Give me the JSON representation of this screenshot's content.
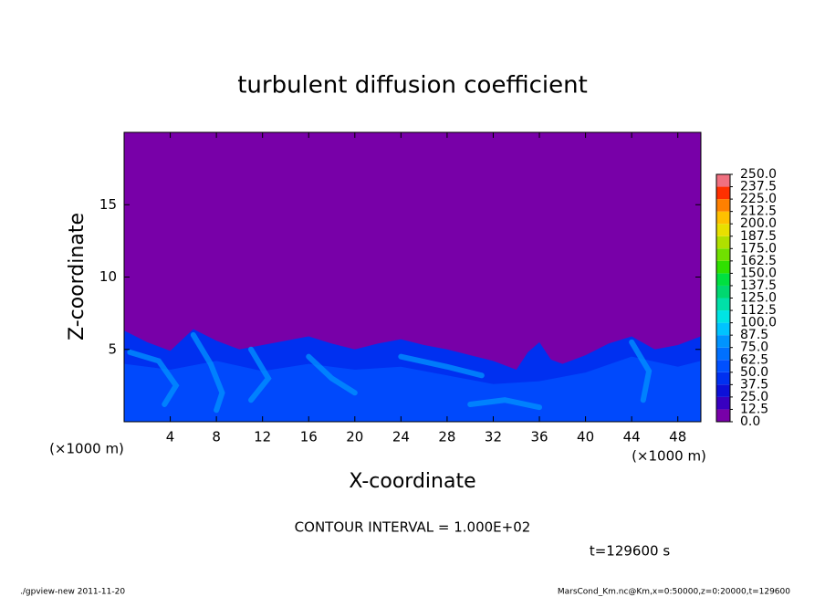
{
  "chart_data": {
    "type": "contour",
    "title": "turbulent diffusion coefficient",
    "xlabel": "X-coordinate",
    "ylabel": "Z-coordinate",
    "x_unit": "(×1000 m)",
    "y_unit": "(×1000 m)",
    "xlim": [
      0,
      50
    ],
    "xticks": [
      4,
      8,
      12,
      16,
      20,
      24,
      28,
      32,
      36,
      40,
      44,
      48
    ],
    "ylim": [
      0,
      20
    ],
    "yticks": [
      5,
      10,
      15
    ],
    "colorbar": {
      "ticks": [
        {
          "value": 0,
          "label": "0.0"
        },
        {
          "value": 12.5,
          "label": "12.5"
        },
        {
          "value": 25,
          "label": "25.0"
        },
        {
          "value": 37.5,
          "label": "37.5"
        },
        {
          "value": 50,
          "label": "50.0"
        },
        {
          "value": 62.5,
          "label": "62.5"
        },
        {
          "value": 75,
          "label": "75.0"
        },
        {
          "value": 87.5,
          "label": "87.5"
        },
        {
          "value": 100,
          "label": "100.0"
        },
        {
          "value": 112.5,
          "label": "112.5"
        },
        {
          "value": 125,
          "label": "125.0"
        },
        {
          "value": 137.5,
          "label": "137.5"
        },
        {
          "value": 150,
          "label": "150.0"
        },
        {
          "value": 162.5,
          "label": "162.5"
        },
        {
          "value": 175,
          "label": "175.0"
        },
        {
          "value": 187.5,
          "label": "187.5"
        },
        {
          "value": 200,
          "label": "200.0"
        },
        {
          "value": 212.5,
          "label": "212.5"
        },
        {
          "value": 225,
          "label": "225.0"
        },
        {
          "value": 237.5,
          "label": "237.5"
        },
        {
          "value": 250,
          "label": "250.0"
        }
      ],
      "colors": [
        "#7800a8",
        "#3800c0",
        "#0c10d8",
        "#0030f0",
        "#0050ff",
        "#0070ff",
        "#0094ff",
        "#00c4ff",
        "#00e4e4",
        "#00e0a8",
        "#00d870",
        "#00e040",
        "#30e000",
        "#70e000",
        "#b0e000",
        "#e8e000",
        "#ffc000",
        "#ff8000",
        "#ff3000",
        "#f07080"
      ]
    },
    "contour_interval": "CONTOUR INTERVAL = 1.000E+02",
    "time_label": "t=129600 s",
    "footer_left": "./gpview-new  2011-11-20",
    "footer_right": "MarsCond_Km.nc@Km,x=0:50000,z=0:20000,t=129600"
  }
}
